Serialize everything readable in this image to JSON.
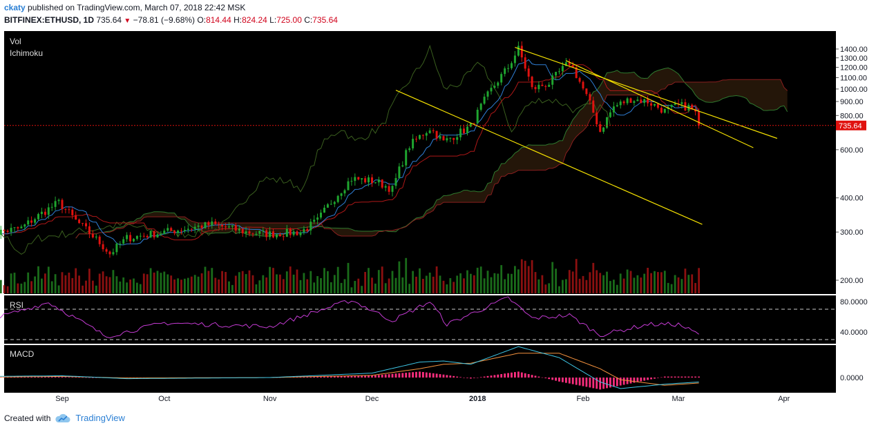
{
  "header": {
    "user": "ckaty",
    "published_text": "published on TradingView.com, March 07, 2018 22:42 MSK",
    "symbol": "BITFINEX:ETHUSD, 1D",
    "last": "735.64",
    "change": "−78.81 (−9.68%)",
    "o_label": "O:",
    "o_val": "814.44",
    "h_label": "H:",
    "h_val": "824.24",
    "l_label": "L:",
    "l_val": "725.00",
    "c_label": "C:",
    "c_val": "735.64"
  },
  "footer": {
    "created_with": "Created with",
    "brand": "TradingView"
  },
  "colors": {
    "up": "#1fa52f",
    "down": "#e0120f",
    "trend": "#f5e100",
    "bg": "#000000",
    "rsi": "#c43bd3",
    "macd": "#3ec6e6",
    "signal": "#f5923e",
    "hist": "#ff2e7e"
  },
  "chart_data": {
    "type": "line",
    "symbol": "BITFINEX:ETHUSD",
    "interval": "1D",
    "indicator_labels": {
      "vol": "Vol",
      "ichimoku": "Ichimoku",
      "rsi": "RSI",
      "macd": "MACD"
    },
    "price_axis": {
      "scale": "log",
      "ticks": [
        1400,
        1300,
        1200,
        1100,
        1000,
        900,
        800,
        600,
        400,
        300,
        200
      ],
      "tick_labels": [
        "1400.00",
        "1300.00",
        "1200.00",
        "1100.00",
        "1000.00",
        "900.00",
        "800.00",
        "600.00",
        "400.00",
        "300.00",
        "200.00"
      ],
      "last_price": 735.64,
      "last_label": "735.64"
    },
    "rsi_axis": {
      "ticks": [
        80,
        40
      ],
      "tick_labels": [
        "80.0000",
        "40.0000"
      ],
      "bands": [
        70,
        30
      ]
    },
    "macd_axis": {
      "ticks": [
        0
      ],
      "tick_labels": [
        "0.0000"
      ]
    },
    "x_axis": {
      "labels": [
        {
          "date": "2017-09-01",
          "text": "Sep"
        },
        {
          "date": "2017-10-01",
          "text": "Oct"
        },
        {
          "date": "2017-11-01",
          "text": "Nov"
        },
        {
          "date": "2017-12-01",
          "text": "Dec"
        },
        {
          "date": "2018-01-01",
          "text": "2018"
        },
        {
          "date": "2018-02-01",
          "text": "Feb"
        },
        {
          "date": "2018-03-01",
          "text": "Mar"
        },
        {
          "date": "2018-04-01",
          "text": "Apr"
        }
      ]
    },
    "price_key_points": [
      {
        "date": "2017-08-10",
        "close": 295
      },
      {
        "date": "2017-08-20",
        "close": 310
      },
      {
        "date": "2017-08-31",
        "close": 385
      },
      {
        "date": "2017-09-05",
        "close": 330
      },
      {
        "date": "2017-09-15",
        "close": 250
      },
      {
        "date": "2017-09-20",
        "close": 285
      },
      {
        "date": "2017-10-01",
        "close": 300
      },
      {
        "date": "2017-10-15",
        "close": 320
      },
      {
        "date": "2017-10-25",
        "close": 300
      },
      {
        "date": "2017-11-01",
        "close": 295
      },
      {
        "date": "2017-11-10",
        "close": 300
      },
      {
        "date": "2017-11-15",
        "close": 330
      },
      {
        "date": "2017-11-25",
        "close": 470
      },
      {
        "date": "2017-12-02",
        "close": 460
      },
      {
        "date": "2017-12-07",
        "close": 430
      },
      {
        "date": "2017-12-12",
        "close": 620
      },
      {
        "date": "2017-12-18",
        "close": 720
      },
      {
        "date": "2017-12-22",
        "close": 640
      },
      {
        "date": "2017-12-30",
        "close": 730
      },
      {
        "date": "2018-01-04",
        "close": 950
      },
      {
        "date": "2018-01-10",
        "close": 1200
      },
      {
        "date": "2018-01-13",
        "close": 1400
      },
      {
        "date": "2018-01-17",
        "close": 1000
      },
      {
        "date": "2018-01-22",
        "close": 1050
      },
      {
        "date": "2018-01-25",
        "close": 1150
      },
      {
        "date": "2018-01-28",
        "close": 1250
      },
      {
        "date": "2018-02-01",
        "close": 1000
      },
      {
        "date": "2018-02-06",
        "close": 700
      },
      {
        "date": "2018-02-10",
        "close": 860
      },
      {
        "date": "2018-02-15",
        "close": 920
      },
      {
        "date": "2018-02-20",
        "close": 900
      },
      {
        "date": "2018-02-25",
        "close": 830
      },
      {
        "date": "2018-03-01",
        "close": 870
      },
      {
        "date": "2018-03-04",
        "close": 860
      },
      {
        "date": "2018-03-06",
        "close": 814
      },
      {
        "date": "2018-03-07",
        "close": 735.64
      }
    ],
    "trend_lines": [
      {
        "from": {
          "date": "2018-01-12",
          "price": 1420
        },
        "to": {
          "date": "2018-03-30",
          "price": 660
        }
      },
      {
        "from": {
          "date": "2018-01-27",
          "price": 1270
        },
        "to": {
          "date": "2018-03-23",
          "price": 610
        }
      },
      {
        "from": {
          "date": "2017-12-08",
          "price": 990
        },
        "to": {
          "date": "2018-03-08",
          "price": 320
        }
      }
    ],
    "rsi_key_points": [
      {
        "date": "2017-08-10",
        "value": 55
      },
      {
        "date": "2017-08-28",
        "value": 79
      },
      {
        "date": "2017-09-05",
        "value": 58
      },
      {
        "date": "2017-09-14",
        "value": 34
      },
      {
        "date": "2017-10-01",
        "value": 52
      },
      {
        "date": "2017-11-01",
        "value": 47
      },
      {
        "date": "2017-11-25",
        "value": 82
      },
      {
        "date": "2017-12-07",
        "value": 55
      },
      {
        "date": "2017-12-18",
        "value": 80
      },
      {
        "date": "2017-12-23",
        "value": 50
      },
      {
        "date": "2018-01-10",
        "value": 85
      },
      {
        "date": "2018-01-17",
        "value": 58
      },
      {
        "date": "2018-01-28",
        "value": 62
      },
      {
        "date": "2018-02-06",
        "value": 36
      },
      {
        "date": "2018-02-20",
        "value": 50
      },
      {
        "date": "2018-03-01",
        "value": 50
      },
      {
        "date": "2018-03-07",
        "value": 37
      }
    ],
    "macd_key_points": [
      {
        "date": "2017-08-10",
        "macd": 5,
        "signal": 2
      },
      {
        "date": "2017-09-01",
        "macd": 8,
        "signal": 5
      },
      {
        "date": "2017-09-20",
        "macd": -5,
        "signal": -2
      },
      {
        "date": "2017-11-01",
        "macd": 0,
        "signal": 0
      },
      {
        "date": "2017-12-01",
        "macd": 20,
        "signal": 10
      },
      {
        "date": "2017-12-15",
        "macd": 70,
        "signal": 40
      },
      {
        "date": "2017-12-22",
        "macd": 75,
        "signal": 60
      },
      {
        "date": "2017-12-30",
        "macd": 60,
        "signal": 65
      },
      {
        "date": "2018-01-13",
        "macd": 140,
        "signal": 110
      },
      {
        "date": "2018-01-25",
        "macd": 90,
        "signal": 110
      },
      {
        "date": "2018-02-06",
        "macd": -20,
        "signal": 40
      },
      {
        "date": "2018-02-12",
        "macd": -50,
        "signal": -10
      },
      {
        "date": "2018-02-25",
        "macd": -30,
        "signal": -35
      },
      {
        "date": "2018-03-07",
        "macd": -20,
        "signal": -25
      }
    ]
  }
}
